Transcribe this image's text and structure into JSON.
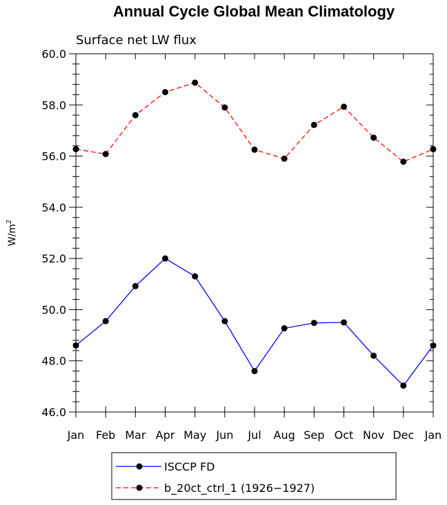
{
  "chart_data": {
    "type": "line",
    "title": "Annual Cycle Global Mean Climatology",
    "subtitle": "Surface net LW flux",
    "xlabel": "",
    "ylabel_main": "W/m",
    "ylabel_sup": "2",
    "ylim": [
      46.0,
      60.0
    ],
    "yticks": [
      "46.0",
      "48.0",
      "50.0",
      "52.0",
      "54.0",
      "56.0",
      "58.0",
      "60.0"
    ],
    "categories": [
      "Jan",
      "Feb",
      "Mar",
      "Apr",
      "May",
      "Jun",
      "Jul",
      "Aug",
      "Sep",
      "Oct",
      "Nov",
      "Dec",
      "Jan"
    ],
    "grid": false,
    "legend_position": "bottom",
    "series": [
      {
        "name": "ISCCP FD",
        "color": "#0000ff",
        "dash": "solid",
        "values": [
          48.6,
          49.55,
          50.92,
          52.0,
          51.3,
          49.55,
          47.6,
          49.27,
          49.48,
          49.5,
          48.2,
          47.03,
          48.6
        ]
      },
      {
        "name": "b_20ct_ctrl_1 (1926−1927)",
        "color": "#ff0000",
        "dash": "dashed",
        "values": [
          56.27,
          56.08,
          57.6,
          58.5,
          58.87,
          57.9,
          56.25,
          55.9,
          57.22,
          57.93,
          56.72,
          55.78,
          56.27
        ]
      }
    ]
  }
}
